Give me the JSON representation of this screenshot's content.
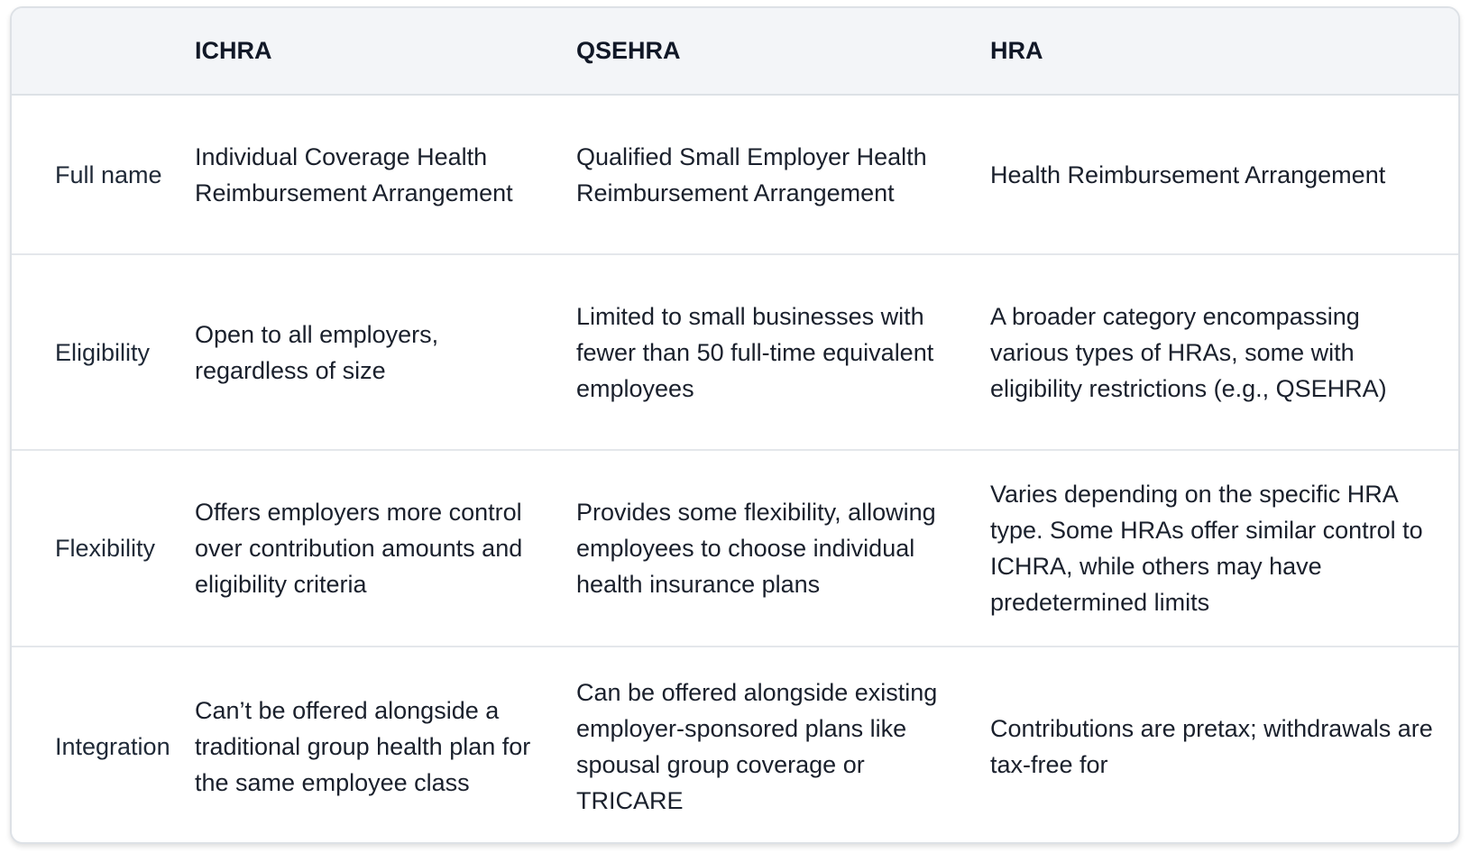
{
  "table": {
    "headers": [
      "",
      "ICHRA",
      "QSEHRA",
      "HRA"
    ],
    "rows": [
      {
        "label": "Full name",
        "ichra": "Individual Coverage Health Reimbursement Arrangement",
        "qsehra": "Qualified Small Employer Health Reimbursement Arrangement",
        "hra": "Health Reimbursement Arrangement"
      },
      {
        "label": "Eligibility",
        "ichra": "Open to all employers, regardless of size",
        "qsehra": "Limited to small businesses with fewer than 50 full-time equivalent employees",
        "hra": "A broader category encompassing various types of HRAs, some with eligibility restrictions (e.g., QSEHRA)"
      },
      {
        "label": "Flexibility",
        "ichra": "Offers employers more control over contribution amounts and eligibility criteria",
        "qsehra": "Provides some flexibility, allowing employees to choose individual health insurance plans",
        "hra": "Varies depending on the specific HRA type. Some HRAs offer similar control to ICHRA, while others may have predetermined limits"
      },
      {
        "label": "Integration",
        "ichra": "Can’t be offered alongside a traditional group health plan for the same employee class",
        "qsehra": "Can be offered alongside existing employer-sponsored plans like spousal group coverage or TRICARE",
        "hra": "Contributions are pretax; withdrawals are tax-free for"
      }
    ]
  }
}
